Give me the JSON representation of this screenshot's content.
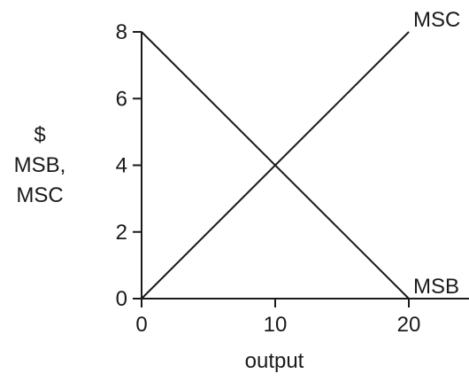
{
  "chart_data": {
    "type": "line",
    "title": "",
    "xlabel": "output",
    "ylabel_lines": [
      "$",
      "MSB,",
      "MSC"
    ],
    "xlim": [
      0,
      20
    ],
    "ylim": [
      0,
      8
    ],
    "xticks": [
      0,
      10,
      20
    ],
    "yticks": [
      0,
      2,
      4,
      6,
      8
    ],
    "grid": false,
    "legend": "none",
    "series": [
      {
        "name": "MSB",
        "x": [
          0,
          20
        ],
        "y": [
          8,
          0
        ]
      },
      {
        "name": "MSC",
        "x": [
          0,
          20
        ],
        "y": [
          0,
          8
        ]
      }
    ],
    "colors": {
      "line": "#1a1a1a",
      "axis": "#1a1a1a"
    }
  }
}
